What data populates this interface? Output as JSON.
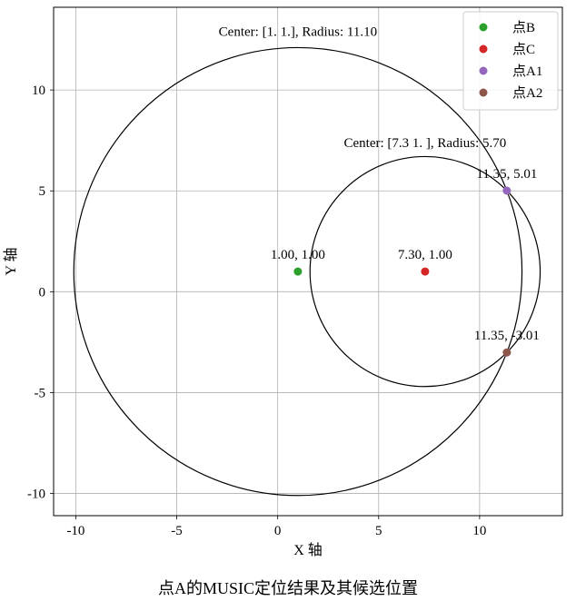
{
  "chart_data": {
    "type": "scatter",
    "title": "",
    "xlabel": "X 轴",
    "ylabel": "Y 轴",
    "xlim": [
      -11.1,
      14.1
    ],
    "ylim": [
      -11.1,
      14.1
    ],
    "xticks": [
      -10,
      -5,
      0,
      5,
      10
    ],
    "yticks": [
      -10,
      -5,
      0,
      5,
      10
    ],
    "xtick_labels": [
      "-10",
      "-5",
      "0",
      "5",
      "10"
    ],
    "ytick_labels": [
      "-10",
      "-5",
      "0",
      "5",
      "10"
    ],
    "grid": true,
    "legend_position": "top-right",
    "circles": [
      {
        "cx": 1.0,
        "cy": 1.0,
        "r": 11.1,
        "label": "Center: [1. 1.], Radius: 11.10",
        "label_at": [
          1.0,
          12.9
        ]
      },
      {
        "cx": 7.3,
        "cy": 1.0,
        "r": 5.7,
        "label": "Center: [7.3 1. ], Radius: 5.70",
        "label_at": [
          7.3,
          7.4
        ]
      }
    ],
    "series": [
      {
        "name": "点B",
        "color": "#2ca02c",
        "points": [
          {
            "x": 1.0,
            "y": 1.0,
            "label": "1.00, 1.00"
          }
        ]
      },
      {
        "name": "点C",
        "color": "#d62728",
        "points": [
          {
            "x": 7.3,
            "y": 1.0,
            "label": "7.30, 1.00"
          }
        ]
      },
      {
        "name": "点A1",
        "color": "#9467bd",
        "points": [
          {
            "x": 11.35,
            "y": 5.01,
            "label": "11.35, 5.01"
          }
        ]
      },
      {
        "name": "点A2",
        "color": "#8c564b",
        "points": [
          {
            "x": 11.35,
            "y": -3.01,
            "label": "11.35, -3.01"
          }
        ]
      }
    ]
  },
  "caption": "点A的MUSIC定位结果及其候选位置"
}
